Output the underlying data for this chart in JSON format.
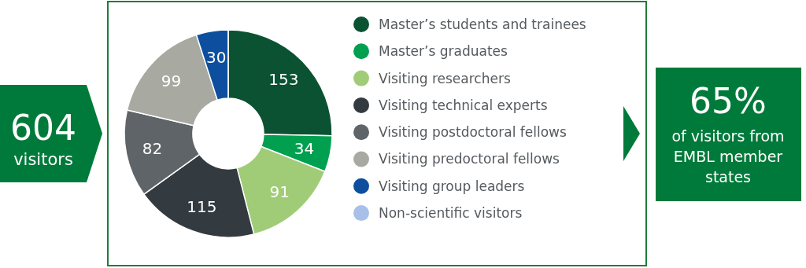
{
  "chart_data": {
    "type": "donut",
    "categories": [
      "Master’s students and trainees",
      "Master’s graduates",
      "Visiting researchers",
      "Visiting technical experts",
      "Visiting postdoctoral fellows",
      "Visiting predoctoral fellows",
      "Visiting group leaders",
      "Non-scientific visitors"
    ],
    "values": [
      153,
      34,
      91,
      115,
      82,
      99,
      30,
      0
    ],
    "value_labels": [
      "153",
      "34",
      "91",
      "115",
      "82",
      "99",
      "30",
      null
    ],
    "colors": [
      "#0a5232",
      "#00a050",
      "#a0cc78",
      "#333a40",
      "#5f6468",
      "#a8aaa2",
      "#0d4f9e",
      "#a8c0e8"
    ],
    "legend": "right",
    "annotations": [
      "604",
      "visitors",
      "65%",
      "of visitors from EMBL member states"
    ]
  }
}
